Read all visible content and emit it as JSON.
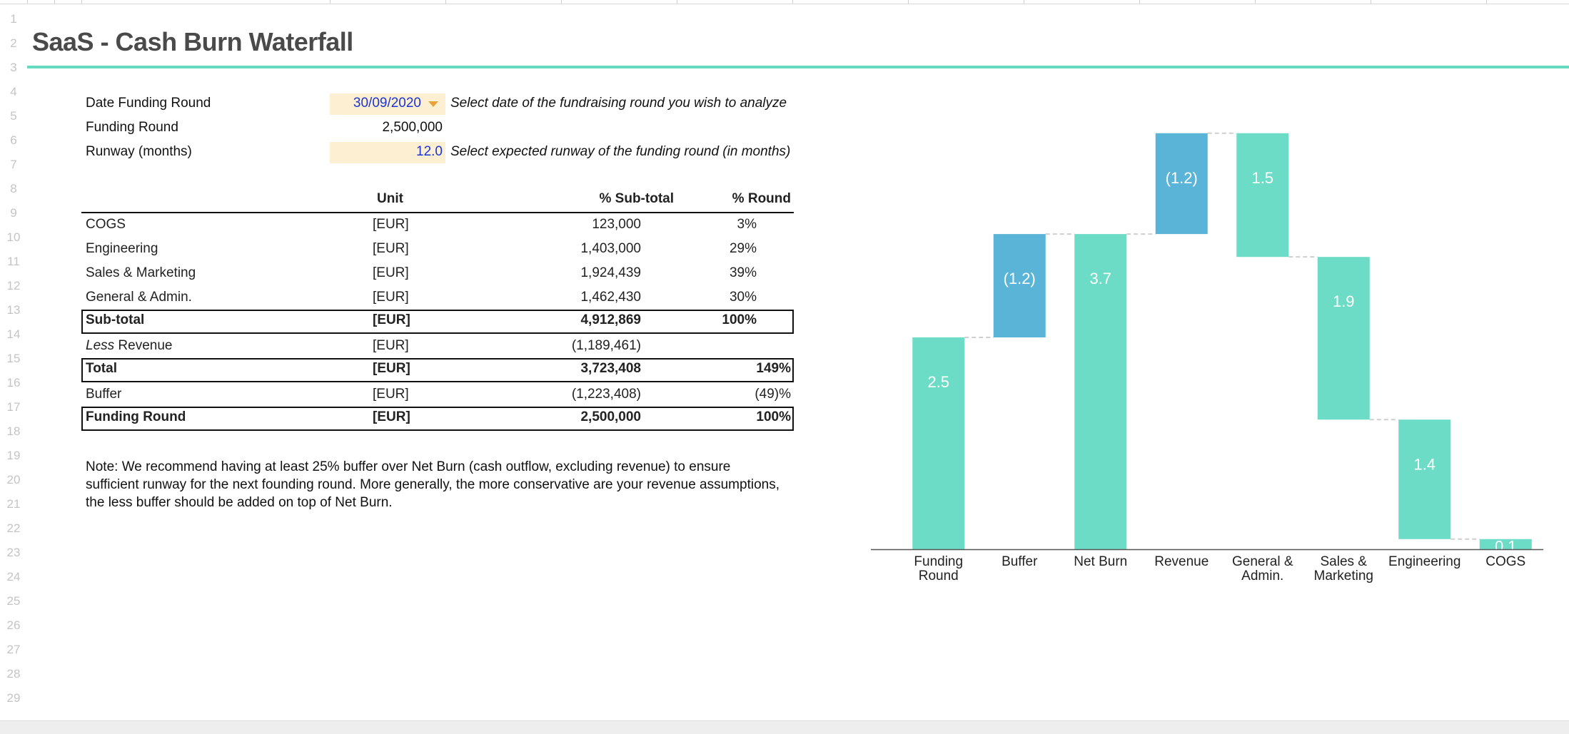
{
  "sheet": {
    "row_numbers": [
      "1",
      "2",
      "3",
      "4",
      "5",
      "6",
      "7",
      "8",
      "9",
      "10",
      "11",
      "12",
      "13",
      "14",
      "15",
      "16",
      "17",
      "18",
      "19",
      "20",
      "21",
      "22",
      "23",
      "24",
      "25",
      "26",
      "27",
      "28",
      "29"
    ]
  },
  "title": "SaaS - Cash Burn Waterfall",
  "inputs": {
    "date_label": "Date Funding Round",
    "date_value": "30/09/2020",
    "date_hint": "Select date of the fundraising round you wish to analyze",
    "funding_label": "Funding Round",
    "funding_value": "2,500,000",
    "runway_label": "Runway (months)",
    "runway_value": "12.0",
    "runway_hint": "Select expected runway of the funding round (in months)"
  },
  "table": {
    "headers": {
      "unit": "Unit",
      "sub_total": "% Sub-total",
      "round": "% Round"
    },
    "rows": [
      {
        "label": "COGS",
        "unit": "[EUR]",
        "value": "123,000",
        "pct_sub": "3%",
        "pct_round": ""
      },
      {
        "label": "Engineering",
        "unit": "[EUR]",
        "value": "1,403,000",
        "pct_sub": "29%",
        "pct_round": ""
      },
      {
        "label": "Sales & Marketing",
        "unit": "[EUR]",
        "value": "1,924,439",
        "pct_sub": "39%",
        "pct_round": ""
      },
      {
        "label": "General & Admin.",
        "unit": "[EUR]",
        "value": "1,462,430",
        "pct_sub": "30%",
        "pct_round": ""
      },
      {
        "label": "Sub-total",
        "unit": "[EUR]",
        "value": "4,912,869",
        "pct_sub": "100%",
        "pct_round": ""
      },
      {
        "label_prefix": "Less",
        "label": "Revenue",
        "unit": "[EUR]",
        "value": "(1,189,461)",
        "pct_sub": "",
        "pct_round": ""
      },
      {
        "label": "Total",
        "unit": "[EUR]",
        "value": "3,723,408",
        "pct_sub": "",
        "pct_round": "149%"
      },
      {
        "label": "Buffer",
        "unit": "[EUR]",
        "value": "(1,223,408)",
        "pct_sub": "",
        "pct_round": "(49)%"
      },
      {
        "label": "Funding Round",
        "unit": "[EUR]",
        "value": "2,500,000",
        "pct_sub": "",
        "pct_round": "100%"
      }
    ]
  },
  "note": "Note: We recommend having at least 25% buffer over Net Burn (cash outflow, excluding revenue) to ensure sufficient runway for the next founding round. More generally, the more conservative are your revenue assumptions, the less buffer should be added on top of Net Burn.",
  "colors": {
    "accent": "#66dbc2",
    "bar_green": "#6ddcc6",
    "bar_blue": "#5ab4d7",
    "input_bg": "#fdf0d2",
    "input_text": "#1b35d6",
    "dropdown_arrow": "#e7a33a"
  },
  "chart_data": {
    "type": "waterfall",
    "categories": [
      "Funding Round",
      "Buffer",
      "Net Burn",
      "Revenue",
      "General & Admin.",
      "Sales & Marketing",
      "Engineering",
      "COGS"
    ],
    "labels": [
      "2.5",
      "(1.2)",
      "3.7",
      "(1.2)",
      "1.5",
      "1.9",
      "1.4",
      "0.1"
    ],
    "ranges": [
      [
        0,
        2.5
      ],
      [
        2.5,
        3.72
      ],
      [
        0,
        3.72
      ],
      [
        3.72,
        4.91
      ],
      [
        3.45,
        4.91
      ],
      [
        1.53,
        3.45
      ],
      [
        0.12,
        1.53
      ],
      [
        0,
        0.12
      ]
    ],
    "colors": [
      "green",
      "blue",
      "green",
      "blue",
      "green",
      "green",
      "green",
      "green"
    ],
    "ylim": [
      0,
      5
    ]
  }
}
